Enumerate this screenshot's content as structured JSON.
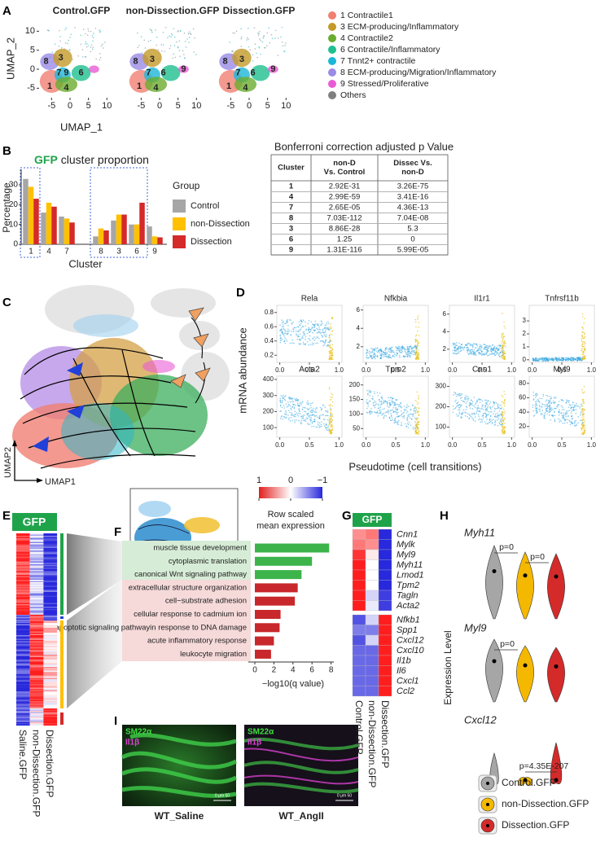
{
  "panel_letters": [
    "A",
    "B",
    "C",
    "D",
    "E",
    "F",
    "G",
    "H",
    "I"
  ],
  "chart_data": [
    {
      "type": "umap",
      "titles": [
        "Control.GFP",
        "non-Dissection.GFP",
        "Dissection.GFP"
      ],
      "xlabel": "UMAP_1",
      "ylabel": "UMAP_2",
      "xlim": [
        -8,
        12
      ],
      "ylim": [
        -8,
        13
      ],
      "xticks": [
        -5,
        0,
        5,
        10
      ],
      "yticks": [
        -5,
        0,
        5,
        10
      ],
      "cluster_labels": [
        [
          "8",
          "3",
          "7",
          "9",
          "6",
          "1",
          "4"
        ],
        [
          "8",
          "3",
          "7",
          "6",
          "9",
          "1",
          "4"
        ],
        [
          "8",
          "3",
          "7",
          "6",
          "9",
          "1",
          "4"
        ]
      ],
      "series": [
        {
          "name": "1 Contractile1",
          "color": "#f07f73"
        },
        {
          "name": "3 ECM-producing/Inflammatory",
          "color": "#c49a28"
        },
        {
          "name": "4 Contractile2",
          "color": "#6aac2e"
        },
        {
          "name": "6 Contractile/Inflammatory",
          "color": "#1fbf8f"
        },
        {
          "name": "7 Tnnt2+ contractile",
          "color": "#1cb6d8"
        },
        {
          "name": "8 ECM-producing/Migration/Inflammatory",
          "color": "#9a8be6"
        },
        {
          "name": "9 Stressed/Proliferative",
          "color": "#e95bd3"
        },
        {
          "name": "Others",
          "color": "#7f7f7f"
        }
      ]
    },
    {
      "type": "bar",
      "title": [
        "GFP",
        "cluster proportion"
      ],
      "xlabel": "Cluster",
      "ylabel": "Percentage",
      "legend_title": "Group",
      "categories": [
        "1",
        "4",
        "7",
        "8",
        "3",
        "6",
        "9"
      ],
      "ylim": [
        0,
        37
      ],
      "yticks": [
        0,
        10,
        20,
        30
      ],
      "series": [
        {
          "name": "Control",
          "color": "#a6a6a6",
          "values": [
            33,
            16,
            14,
            4,
            12,
            10,
            9
          ]
        },
        {
          "name": "non-Dissection",
          "color": "#ffc000",
          "values": [
            29,
            21,
            13,
            8,
            15,
            10,
            4
          ]
        },
        {
          "name": "Dissection",
          "color": "#d42a2a",
          "values": [
            23,
            19,
            11,
            7,
            15,
            21,
            3.5
          ]
        }
      ]
    },
    {
      "type": "hbar",
      "xlabel": "−log10(q value)",
      "xlim": [
        -0.7,
        8.3
      ],
      "xticks": [
        0,
        2,
        4,
        6,
        8
      ],
      "categories": [
        "muscle tissue development",
        "cytoplasmic translation",
        "canonical Wnt signaling pathway",
        "extracellular structure organization",
        "cell−substrate adhesion",
        "cellular response to cadmium ion",
        "intrinsic apoptotic signaling pathwayin response to DNA damage",
        "acute inflammatory response",
        "leukocyte migration"
      ],
      "values": [
        7.8,
        6.0,
        4.9,
        4.5,
        4.2,
        2.7,
        2.6,
        2.0,
        1.7
      ],
      "colors": [
        "#3cb44b",
        "#3cb44b",
        "#3cb44b",
        "#c8282b",
        "#c8282b",
        "#c8282b",
        "#c8282b",
        "#c8282b",
        "#c8282b"
      ]
    },
    {
      "type": "heatmap",
      "title": "GFP",
      "columns": [
        "Control.GFP",
        "non-Dissection.GFP",
        "Dissection.GFP"
      ],
      "rows": [
        "Cnn1",
        "Mylk",
        "Myl9",
        "Myh11",
        "Lmod1",
        "Tpm2",
        "Tagln",
        "Acta2",
        "Nfkb1",
        "Spp1",
        "Cxcl12",
        "Cxcl10",
        "Il1b",
        "Il6",
        "Cxcl1",
        "Ccl2"
      ],
      "values": [
        [
          0.5,
          0.6,
          -1
        ],
        [
          0.6,
          0.5,
          -1
        ],
        [
          0.9,
          0.1,
          -1
        ],
        [
          1,
          0,
          -1
        ],
        [
          1,
          0,
          -1
        ],
        [
          1,
          0,
          -1
        ],
        [
          1,
          -0.2,
          -0.9
        ],
        [
          1,
          -0.1,
          -0.9
        ],
        [
          -0.8,
          -0.2,
          1
        ],
        [
          -0.6,
          -0.6,
          1
        ],
        [
          -0.8,
          -0.2,
          1
        ],
        [
          -0.7,
          -0.7,
          1
        ],
        [
          -0.7,
          -0.7,
          1
        ],
        [
          -0.7,
          -0.7,
          1
        ],
        [
          -0.7,
          -0.7,
          1
        ],
        [
          -0.7,
          -0.7,
          1
        ]
      ],
      "colorbar": {
        "title": [
          "Row scaled",
          "mean expression"
        ],
        "lim": [
          1,
          -1
        ],
        "ticks": [
          1,
          0,
          {
            "value": -1,
            "label": "−1"
          }
        ]
      }
    },
    {
      "type": "scatter",
      "title": "Rela",
      "xlim": [
        -0.05,
        1.05
      ],
      "ylim": [
        0.1,
        0.9
      ],
      "xticks": [
        {
          "value": 0,
          "label": "0.0"
        },
        0.5,
        {
          "value": 1,
          "label": "1.0"
        }
      ],
      "yticks": [
        0.2,
        0.4,
        0.6,
        0.8
      ]
    },
    {
      "type": "scatter",
      "title": "Nfkbia",
      "xlim": [
        -0.05,
        1.05
      ],
      "ylim": [
        0.3,
        6.5
      ],
      "xticks": [
        {
          "value": 0,
          "label": "0.0"
        },
        0.5,
        {
          "value": 1,
          "label": "1.0"
        }
      ],
      "yticks": [
        2,
        4,
        6
      ]
    },
    {
      "type": "scatter",
      "title": "Il1r1",
      "xlim": [
        -0.05,
        1.05
      ],
      "ylim": [
        0.5,
        7
      ],
      "xticks": [
        {
          "value": 0,
          "label": "0.0"
        },
        0.5,
        {
          "value": 1,
          "label": "1.0"
        }
      ],
      "yticks": [
        2,
        4,
        6
      ]
    },
    {
      "type": "scatter",
      "title": "Tnfrsf11b",
      "xlim": [
        -0.05,
        1.05
      ],
      "ylim": [
        -0.2,
        4.2
      ],
      "xticks": [
        {
          "value": 0,
          "label": "0.0"
        },
        0.5,
        {
          "value": 1,
          "label": "1.0"
        }
      ],
      "yticks": [
        0,
        1,
        2,
        3
      ]
    },
    {
      "type": "scatter",
      "title": "Acta2",
      "xlim": [
        -0.05,
        1.05
      ],
      "ylim": [
        40,
        420
      ],
      "xticks": [
        {
          "value": 0,
          "label": "0.0"
        },
        0.5,
        {
          "value": 1,
          "label": "1.0"
        }
      ],
      "yticks": [
        100,
        200,
        300,
        400
      ]
    },
    {
      "type": "scatter",
      "title": "Tpm2",
      "xlim": [
        -0.05,
        1.05
      ],
      "ylim": [
        20,
        230
      ],
      "xticks": [
        {
          "value": 0,
          "label": "0.0"
        },
        0.5,
        {
          "value": 1,
          "label": "1.0"
        }
      ],
      "yticks": [
        50,
        100,
        150,
        200
      ]
    },
    {
      "type": "scatter",
      "title": "Cnn1",
      "xlim": [
        -0.05,
        1.05
      ],
      "ylim": [
        50,
        350
      ],
      "xticks": [
        {
          "value": 0,
          "label": "0.0"
        },
        0.5,
        {
          "value": 1,
          "label": "1.0"
        }
      ],
      "yticks": [
        100,
        200,
        300
      ]
    },
    {
      "type": "scatter",
      "title": "Myl9",
      "xlim": [
        -0.05,
        1.05
      ],
      "ylim": [
        5,
        90
      ],
      "xticks": [
        {
          "value": 0,
          "label": "0.0"
        },
        0.5,
        {
          "value": 1,
          "label": "1.0"
        }
      ],
      "yticks": [
        20,
        40,
        60,
        80
      ]
    }
  ],
  "table": {
    "title": "Bonferroni correction adjusted p Value",
    "header": [
      [
        "Cluster"
      ],
      [
        "non-D",
        "Vs. Control"
      ],
      [
        "Dissec Vs.",
        "non-D"
      ]
    ],
    "rows": [
      [
        "1",
        "2.92E-31",
        "3.26E-75"
      ],
      [
        "4",
        "2.99E-59",
        "3.41E-16"
      ],
      [
        "7",
        "2.65E-05",
        "4.36E-13"
      ],
      [
        "8",
        "7.03E-112",
        "7.04E-08"
      ],
      [
        "3",
        "8.86E-28",
        "5.3"
      ],
      [
        "6",
        "1.25",
        "0"
      ],
      [
        "9",
        "1.31E-116",
        "5.99E-05"
      ]
    ]
  },
  "panel_c": {
    "xlabel": "UMAP1",
    "ylabel": "UMAP2"
  },
  "panel_d": {
    "ylabel": "mRNA abundance",
    "xlabel": "Pseudotime (cell transitions)"
  },
  "panel_e": {
    "banner": "GFP",
    "columns": [
      "Saline.GFP",
      "non-Dissection.GFP",
      "Dissection.GFP"
    ]
  },
  "panel_h": {
    "genes": [
      "Myh11",
      "Myl9",
      "Cxcl12"
    ],
    "annotations": [
      "p=0",
      "p=0",
      "p=0",
      "p=4.35E-207"
    ],
    "ylabel": "Expression Level",
    "legend": [
      "Control.GFP",
      "non-Dissection.GFP",
      "Dissection.GFP"
    ],
    "colors": [
      "#a6a6a6",
      "#f5b800",
      "#d42a2a"
    ]
  },
  "panel_i": {
    "stains": [
      "SM22α",
      "Il1β"
    ],
    "scale": "0 μm 50",
    "conditions": [
      "WT_Saline",
      "WT_AngII"
    ]
  }
}
